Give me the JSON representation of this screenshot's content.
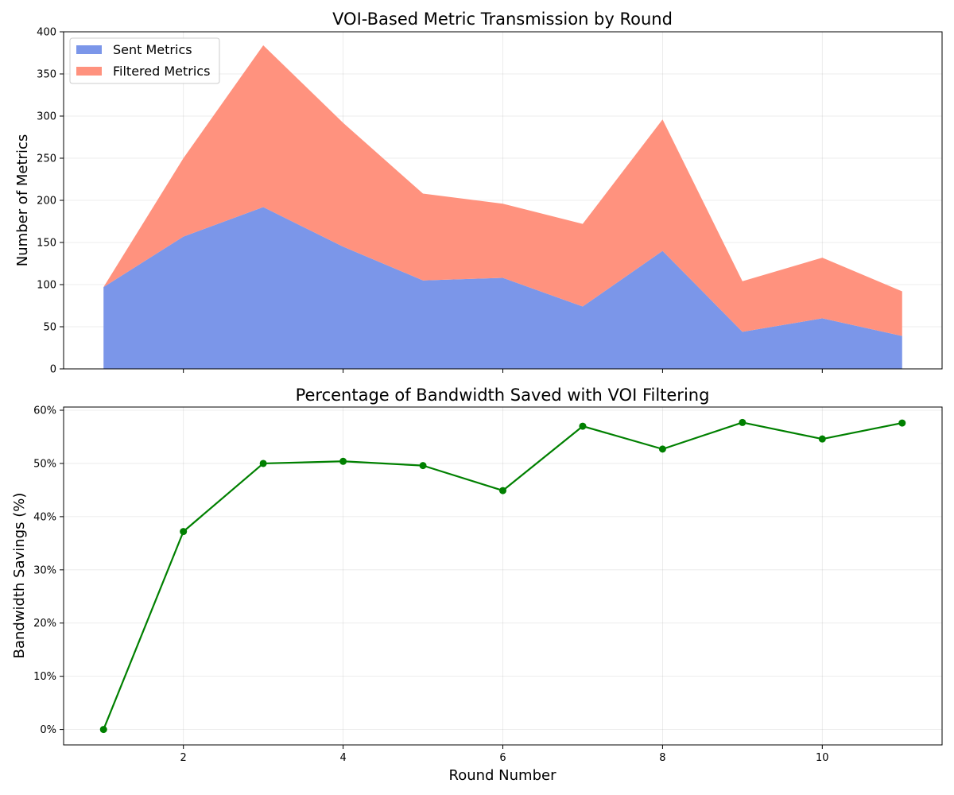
{
  "chart_data": [
    {
      "type": "area",
      "stacked": true,
      "title": "VOI-Based Metric Transmission by Round",
      "xlabel": "",
      "ylabel": "Number of Metrics",
      "x": [
        1,
        2,
        3,
        4,
        5,
        6,
        7,
        8,
        9,
        10,
        11
      ],
      "series": [
        {
          "name": "Sent Metrics",
          "color": "#7b96e9",
          "values": [
            97,
            157,
            192,
            145,
            105,
            108,
            74,
            140,
            44,
            60,
            39
          ]
        },
        {
          "name": "Filtered Metrics",
          "color": "#ff927e",
          "values": [
            0,
            93,
            192,
            147,
            103,
            88,
            98,
            156,
            60,
            72,
            53
          ]
        }
      ],
      "xlim": [
        0.5,
        11.5
      ],
      "ylim": [
        0,
        400
      ],
      "yticks": [
        0,
        50,
        100,
        150,
        200,
        250,
        300,
        350,
        400
      ],
      "xticks": [
        2,
        4,
        6,
        8,
        10
      ],
      "xtick_labels_shown": false,
      "grid": true,
      "legend": "top-left"
    },
    {
      "type": "line",
      "title": "Percentage of Bandwidth Saved with VOI Filtering",
      "xlabel": "Round Number",
      "ylabel": "Bandwidth Savings (%)",
      "x": [
        1,
        2,
        3,
        4,
        5,
        6,
        7,
        8,
        9,
        10,
        11
      ],
      "series": [
        {
          "color": "#008000",
          "values": [
            0,
            37.2,
            50.0,
            50.4,
            49.6,
            44.9,
            57.0,
            52.7,
            57.7,
            54.6,
            57.6
          ]
        }
      ],
      "xlim": [
        0.5,
        11.5
      ],
      "ylim": [
        -2.9,
        60.6
      ],
      "yticks": [
        0,
        10,
        20,
        30,
        40,
        50,
        60
      ],
      "ytick_format": "{v}%",
      "xticks": [
        2,
        4,
        6,
        8,
        10
      ],
      "grid": true
    }
  ]
}
